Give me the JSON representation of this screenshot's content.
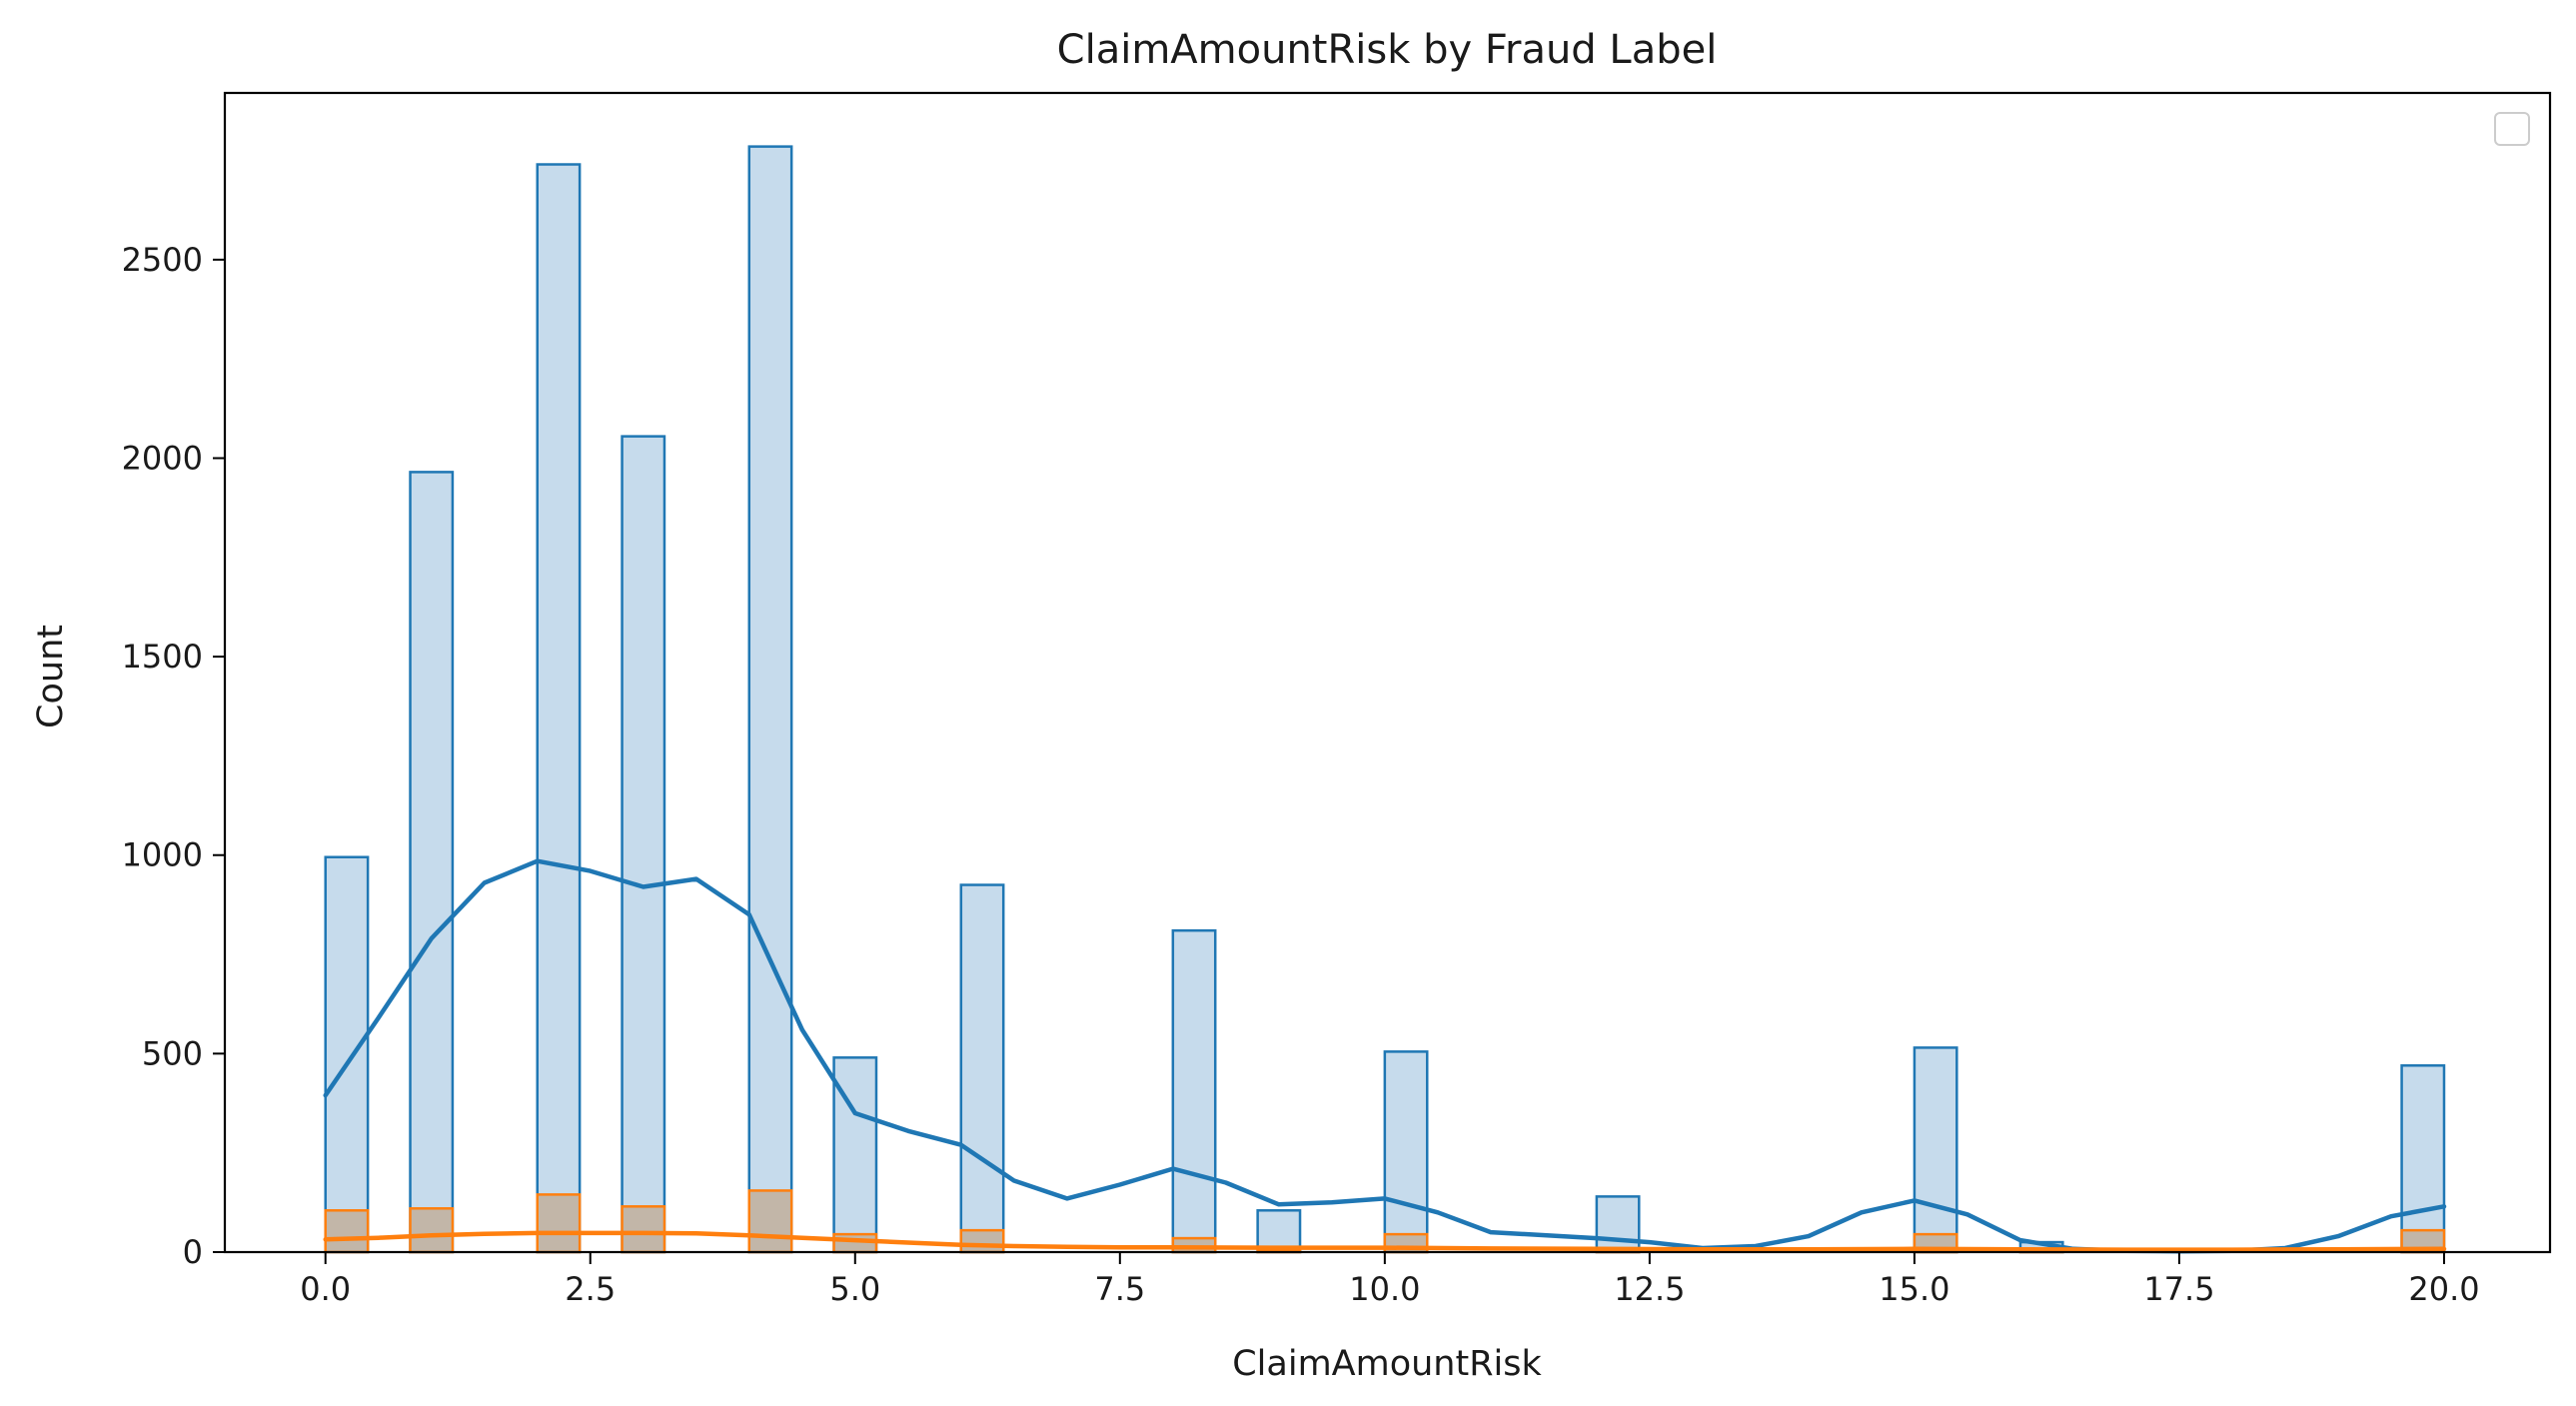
{
  "chart_data": {
    "type": "bar",
    "title": "ClaimAmountRisk by Fraud Label",
    "xlabel": "ClaimAmountRisk",
    "ylabel": "Count",
    "xlim": [
      -0.95,
      21.0
    ],
    "ylim": [
      0,
      2920
    ],
    "xticks": [
      0.0,
      2.5,
      5.0,
      7.5,
      10.0,
      12.5,
      15.0,
      17.5,
      20.0
    ],
    "xtick_labels": [
      "0.0",
      "2.5",
      "5.0",
      "7.5",
      "10.0",
      "12.5",
      "15.0",
      "17.5",
      "20.0"
    ],
    "yticks": [
      0,
      500,
      1000,
      1500,
      2000,
      2500
    ],
    "ytick_labels": [
      "0",
      "500",
      "1000",
      "1500",
      "2000",
      "2500"
    ],
    "bin_width": 0.4,
    "legend": {
      "position": "top-right",
      "entries": []
    },
    "grid": false,
    "series": [
      {
        "color": "#1f77b4",
        "fill": "#c6dbec",
        "bins": [
          {
            "x0": 0.0,
            "count": 995
          },
          {
            "x0": 0.8,
            "count": 1965
          },
          {
            "x0": 2.0,
            "count": 2740
          },
          {
            "x0": 2.8,
            "count": 2055
          },
          {
            "x0": 4.0,
            "count": 2785
          },
          {
            "x0": 4.8,
            "count": 490
          },
          {
            "x0": 6.0,
            "count": 925
          },
          {
            "x0": 8.0,
            "count": 810
          },
          {
            "x0": 8.8,
            "count": 105
          },
          {
            "x0": 10.0,
            "count": 505
          },
          {
            "x0": 12.0,
            "count": 140
          },
          {
            "x0": 15.0,
            "count": 515
          },
          {
            "x0": 16.0,
            "count": 25
          },
          {
            "x0": 19.6,
            "count": 470
          }
        ],
        "kde": [
          [
            0.0,
            395
          ],
          [
            0.5,
            590
          ],
          [
            1.0,
            790
          ],
          [
            1.5,
            930
          ],
          [
            2.0,
            985
          ],
          [
            2.5,
            960
          ],
          [
            3.0,
            920
          ],
          [
            3.5,
            940
          ],
          [
            4.0,
            850
          ],
          [
            4.5,
            560
          ],
          [
            5.0,
            350
          ],
          [
            5.5,
            305
          ],
          [
            6.0,
            270
          ],
          [
            6.5,
            180
          ],
          [
            7.0,
            135
          ],
          [
            7.5,
            170
          ],
          [
            8.0,
            210
          ],
          [
            8.5,
            175
          ],
          [
            9.0,
            120
          ],
          [
            9.5,
            125
          ],
          [
            10.0,
            135
          ],
          [
            10.5,
            100
          ],
          [
            11.0,
            50
          ],
          [
            12.0,
            35
          ],
          [
            12.5,
            25
          ],
          [
            13.0,
            10
          ],
          [
            13.5,
            15
          ],
          [
            14.0,
            40
          ],
          [
            14.5,
            100
          ],
          [
            15.0,
            130
          ],
          [
            15.5,
            95
          ],
          [
            16.0,
            30
          ],
          [
            16.5,
            8
          ],
          [
            17.0,
            3
          ],
          [
            17.5,
            2
          ],
          [
            18.0,
            3
          ],
          [
            18.5,
            10
          ],
          [
            19.0,
            40
          ],
          [
            19.5,
            90
          ],
          [
            20.0,
            115
          ]
        ]
      },
      {
        "color": "#ff7f0e",
        "fill": "#c2b6a8",
        "bins": [
          {
            "x0": 0.0,
            "count": 105
          },
          {
            "x0": 0.8,
            "count": 110
          },
          {
            "x0": 2.0,
            "count": 145
          },
          {
            "x0": 2.8,
            "count": 115
          },
          {
            "x0": 4.0,
            "count": 155
          },
          {
            "x0": 4.8,
            "count": 45
          },
          {
            "x0": 6.0,
            "count": 55
          },
          {
            "x0": 8.0,
            "count": 35
          },
          {
            "x0": 8.8,
            "count": 5
          },
          {
            "x0": 10.0,
            "count": 45
          },
          {
            "x0": 12.0,
            "count": 8
          },
          {
            "x0": 15.0,
            "count": 45
          },
          {
            "x0": 16.0,
            "count": 2
          },
          {
            "x0": 19.6,
            "count": 55
          }
        ],
        "kde": [
          [
            0.0,
            32
          ],
          [
            0.5,
            36
          ],
          [
            1.0,
            42
          ],
          [
            1.5,
            46
          ],
          [
            2.0,
            48
          ],
          [
            2.5,
            48
          ],
          [
            3.0,
            48
          ],
          [
            3.5,
            47
          ],
          [
            4.0,
            42
          ],
          [
            4.5,
            36
          ],
          [
            5.0,
            30
          ],
          [
            5.5,
            24
          ],
          [
            6.0,
            18
          ],
          [
            6.5,
            15
          ],
          [
            7.0,
            13
          ],
          [
            7.5,
            12
          ],
          [
            8.0,
            12
          ],
          [
            9.0,
            11
          ],
          [
            10.0,
            11
          ],
          [
            11.0,
            9
          ],
          [
            12.0,
            8
          ],
          [
            13.0,
            7
          ],
          [
            14.0,
            7
          ],
          [
            15.0,
            8
          ],
          [
            16.0,
            7
          ],
          [
            17.0,
            6
          ],
          [
            18.0,
            6
          ],
          [
            19.0,
            7
          ],
          [
            20.0,
            8
          ]
        ]
      }
    ]
  }
}
